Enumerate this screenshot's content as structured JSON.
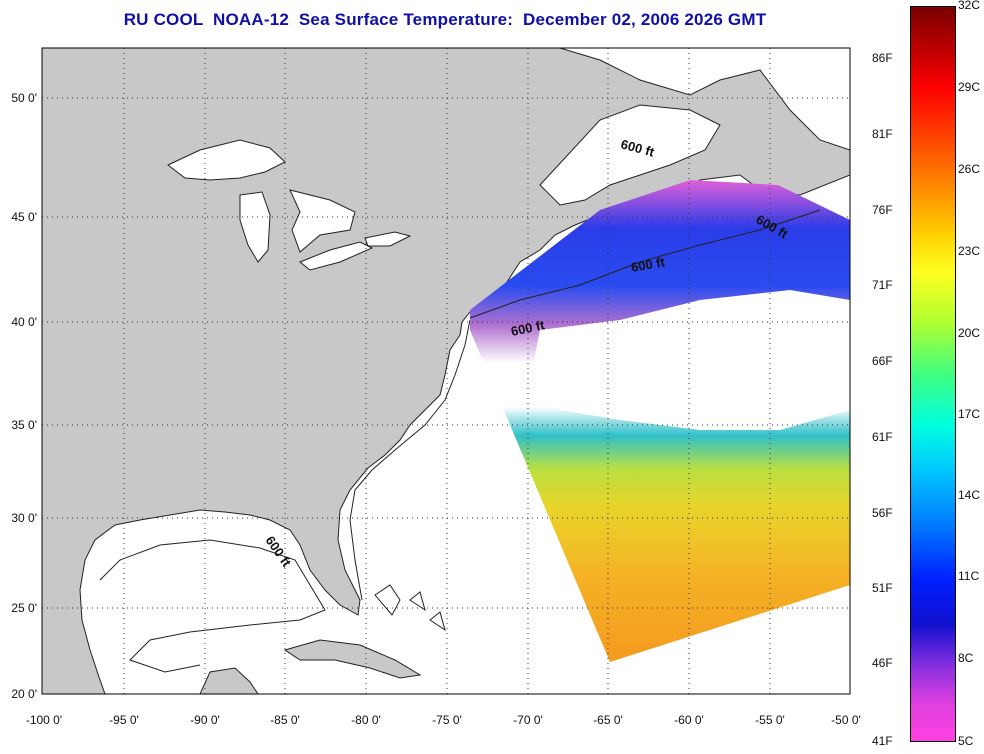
{
  "title": "RU COOL  NOAA-12  Sea Surface Temperature:  December 02, 2006 2026 GMT",
  "map": {
    "lon_range": [
      -100,
      -50
    ],
    "lat_range": [
      20,
      52.5
    ],
    "lon_ticks": [
      "-100 0'",
      "-95 0'",
      "-90 0'",
      "-85 0'",
      "-80 0'",
      "-75 0'",
      "-70 0'",
      "-65 0'",
      "-60 0'",
      "-55 0'",
      "-50 0'"
    ],
    "lat_ticks": [
      "50 0'",
      "45 0'",
      "40 0'",
      "35 0'",
      "30 0'",
      "25 0'",
      "20 0'"
    ],
    "contour_labels": [
      "600 ft",
      "600 ft",
      "600 ft",
      "600 ft",
      "600 ft"
    ],
    "colors": {
      "land": "#c8c8c8",
      "ocean": "#ffffff",
      "title": "#1010a8"
    }
  },
  "colorbar": {
    "celsius": [
      "32C",
      "29C",
      "26C",
      "23C",
      "20C",
      "17C",
      "14C",
      "11C",
      "8C",
      "5C"
    ],
    "fahrenheit": [
      "86F",
      "81F",
      "76F",
      "71F",
      "66F",
      "61F",
      "56F",
      "51F",
      "46F",
      "41F"
    ]
  }
}
